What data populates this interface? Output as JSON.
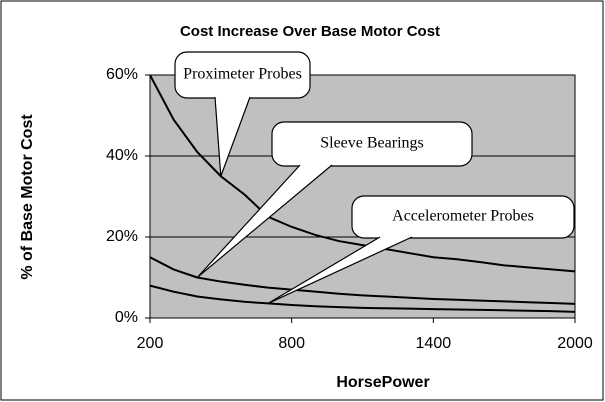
{
  "chart_data": {
    "type": "line",
    "title": "Cost Increase Over Base Motor Cost",
    "xlabel": "HorsePower",
    "ylabel": "% of Base Motor Cost",
    "x": [
      200,
      300,
      400,
      500,
      600,
      700,
      800,
      900,
      1000,
      1100,
      1200,
      1300,
      1400,
      1500,
      1600,
      1700,
      1800,
      1900,
      2000
    ],
    "series": [
      {
        "name": "Proximeter Probes",
        "color": "#000000",
        "values": [
          60,
          49,
          41,
          35,
          30.5,
          25,
          22.5,
          20.5,
          19,
          18,
          17,
          16,
          15,
          14.5,
          13.8,
          13,
          12.5,
          12,
          11.5
        ]
      },
      {
        "name": "Sleeve Bearings",
        "color": "#000000",
        "values": [
          15,
          12,
          10,
          9,
          8.2,
          7.5,
          7,
          6.5,
          6,
          5.6,
          5.3,
          5,
          4.7,
          4.5,
          4.3,
          4.1,
          3.9,
          3.7,
          3.5
        ]
      },
      {
        "name": "Accelerometer Probes",
        "color": "#000000",
        "values": [
          8,
          6.5,
          5.3,
          4.6,
          4,
          3.6,
          3.2,
          2.9,
          2.7,
          2.5,
          2.4,
          2.3,
          2.2,
          2.1,
          2,
          1.9,
          1.8,
          1.7,
          1.5
        ]
      }
    ],
    "xlim": [
      200,
      2000
    ],
    "xticks": [
      200,
      800,
      1400,
      2000
    ],
    "ylim": [
      0,
      60
    ],
    "yticks": [
      {
        "value": 0,
        "label": "0%"
      },
      {
        "value": 20,
        "label": "20%"
      },
      {
        "value": 40,
        "label": "40%"
      },
      {
        "value": 60,
        "label": "60%"
      }
    ],
    "grid": true,
    "plot_color": "#c0c0c0"
  }
}
